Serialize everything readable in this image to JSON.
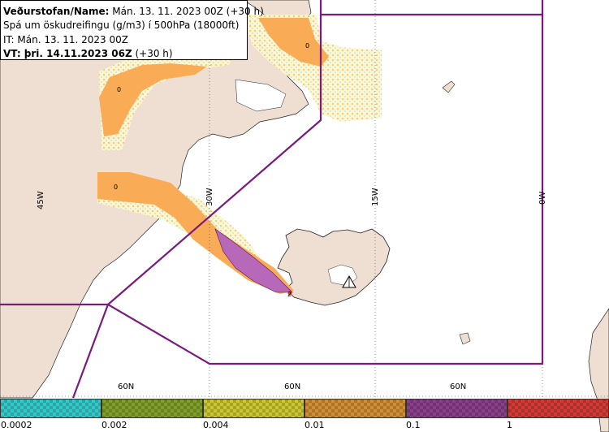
{
  "info": {
    "line1_bold": "Veðurstofan/Name:",
    "line1_rest": " Mán. 13. 11. 2023 00Z (+30 h)",
    "line2": "Spá um öskudreifingu (g/m3) í 500hPa (18000ft)",
    "line3": "IT: Mán. 13. 11. 2023 00Z",
    "line4_bold": "VT: þri. 14.11.2023 06Z",
    "line4_rest": " (+30 h)"
  },
  "grid": {
    "lon_labels": [
      "45W",
      "30W",
      "15W",
      "0W"
    ],
    "lat_labels": [
      "60N",
      "60N",
      "60N"
    ]
  },
  "contour_labels": [
    "0",
    "0",
    "0",
    "2"
  ],
  "legend": {
    "ticks": [
      "0.0002",
      "0.002",
      "0.004",
      "0.01",
      "0.1",
      "1"
    ],
    "colors": [
      "#35c8c8",
      "#7f9f2a",
      "#c9c62f",
      "#d08f35",
      "#8a3f8a",
      "#d23a35"
    ]
  },
  "plume_colors": {
    "light": "#fddc9b",
    "orange": "#f9ab56",
    "purple": "#b868b8"
  },
  "colors": {
    "land": "#efdfd2",
    "boundary": "#7a1a7e",
    "coast": "#222222"
  }
}
